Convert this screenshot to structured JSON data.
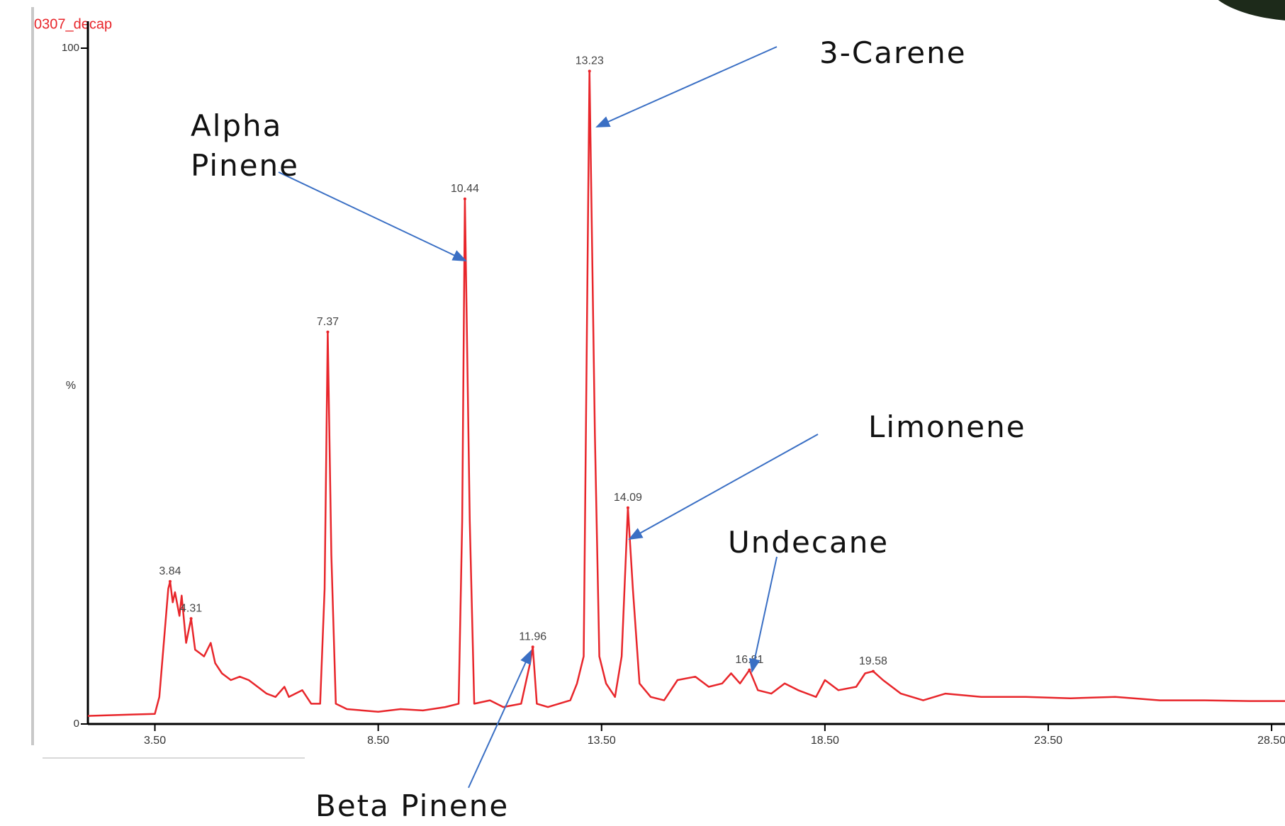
{
  "chart_data": {
    "type": "line",
    "title": "0307_decap",
    "ylabel": "%",
    "color": "#e8262b",
    "xlim": [
      2.0,
      28.8
    ],
    "ylim": [
      0,
      100
    ],
    "yticks": [
      0,
      100
    ],
    "xticks": [
      {
        "value": 3.5,
        "label": "3.50"
      },
      {
        "value": 8.5,
        "label": "8.50"
      },
      {
        "value": 13.5,
        "label": "13.50"
      },
      {
        "value": 18.5,
        "label": "18.50"
      },
      {
        "value": 23.5,
        "label": "23.50"
      },
      {
        "value": 28.5,
        "label": "28.50"
      }
    ],
    "x": [
      2.0,
      3.0,
      3.5,
      3.6,
      3.7,
      3.8,
      3.84,
      3.9,
      3.95,
      4.05,
      4.1,
      4.2,
      4.31,
      4.4,
      4.5,
      4.6,
      4.75,
      4.85,
      5.0,
      5.2,
      5.4,
      5.6,
      5.8,
      6.0,
      6.2,
      6.4,
      6.5,
      6.8,
      7.0,
      7.2,
      7.3,
      7.37,
      7.45,
      7.55,
      7.8,
      8.5,
      9.0,
      9.5,
      10.0,
      10.3,
      10.38,
      10.44,
      10.55,
      10.65,
      11.0,
      11.3,
      11.7,
      11.9,
      11.96,
      12.05,
      12.3,
      12.8,
      12.95,
      13.1,
      13.23,
      13.35,
      13.45,
      13.6,
      13.8,
      13.95,
      14.09,
      14.2,
      14.35,
      14.6,
      14.9,
      15.2,
      15.6,
      15.9,
      16.2,
      16.4,
      16.6,
      16.81,
      17.0,
      17.3,
      17.6,
      17.9,
      18.3,
      18.5,
      18.8,
      19.2,
      19.4,
      19.58,
      19.8,
      20.2,
      20.7,
      21.2,
      22.0,
      23.0,
      24.0,
      25.0,
      26.0,
      27.0,
      28.0,
      28.8
    ],
    "values": [
      1.2,
      1.4,
      1.5,
      4,
      12,
      20,
      21.1,
      18,
      19.5,
      16,
      19,
      12,
      15.6,
      11,
      10.5,
      10,
      12,
      9,
      7.5,
      6.5,
      7,
      6.5,
      5.5,
      4.5,
      4,
      5.5,
      4,
      5,
      3,
      3,
      20,
      58,
      25,
      3,
      2.2,
      1.8,
      2.2,
      2,
      2.5,
      3,
      30,
      77.7,
      30,
      3,
      3.5,
      2.5,
      3,
      9,
      11.4,
      3,
      2.5,
      3.5,
      6,
      10,
      96.6,
      43,
      10,
      6,
      4,
      10,
      32,
      20,
      6,
      4,
      3.5,
      6.5,
      7,
      5.5,
      6,
      7.5,
      6,
      8,
      5,
      4.5,
      6,
      5,
      4,
      6.5,
      5,
      5.5,
      7.5,
      7.8,
      6.5,
      4.5,
      3.5,
      4.5,
      4,
      4,
      3.8,
      4,
      3.5,
      3.5,
      3.4,
      3.4
    ],
    "peaks": {
      "x": [
        3.84,
        4.31,
        7.37,
        10.44,
        11.96,
        13.23,
        14.09,
        16.81,
        19.58
      ],
      "values": [
        21.1,
        15.6,
        58,
        77.7,
        11.4,
        96.6,
        32,
        8,
        7.8
      ]
    },
    "annotations": [
      "Alpha Pinene",
      "3-Carene",
      "Limonene",
      "Undecane",
      "Beta Pinene"
    ]
  }
}
